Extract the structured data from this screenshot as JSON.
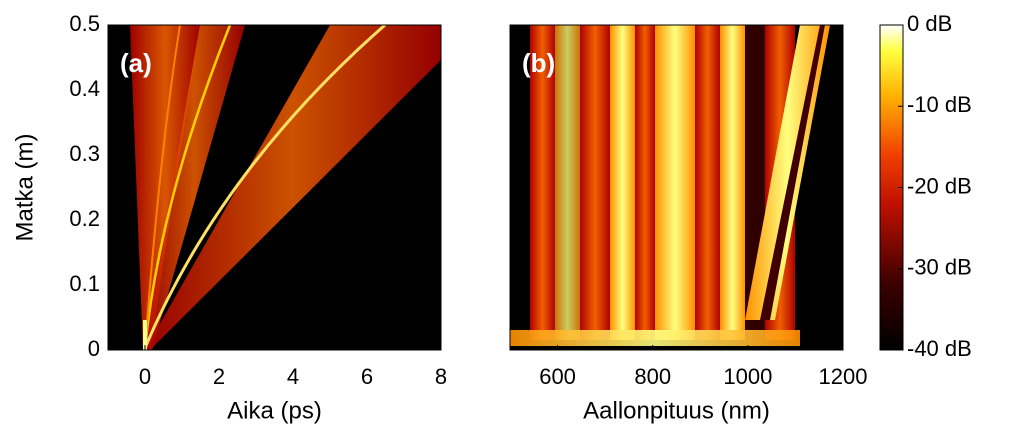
{
  "chart_data": [
    {
      "type": "heatmap",
      "annotation": "(a)",
      "xlabel": "Aika (ps)",
      "ylabel": "Matka (m)",
      "xlim": [
        -1,
        8
      ],
      "xticks": [
        0,
        2,
        4,
        6,
        8
      ],
      "ylim": [
        0,
        0.5
      ],
      "yticks": [
        0,
        0.1,
        0.2,
        0.3,
        0.4,
        0.5
      ]
    },
    {
      "type": "heatmap",
      "annotation": "(b)",
      "xlabel": "Aallonpituus (nm)",
      "xlim": [
        500,
        1200
      ],
      "xticks": [
        600,
        800,
        1000,
        1200
      ],
      "ylim": [
        0,
        0.5
      ],
      "clim": [
        -40,
        0
      ],
      "cticks": [
        {
          "value": 0,
          "label": "0 dB"
        },
        {
          "value": -10,
          "label": "-10 dB"
        },
        {
          "value": -20,
          "label": "-20 dB"
        },
        {
          "value": -30,
          "label": "-30 dB"
        },
        {
          "value": -40,
          "label": "-40 dB"
        }
      ]
    }
  ]
}
